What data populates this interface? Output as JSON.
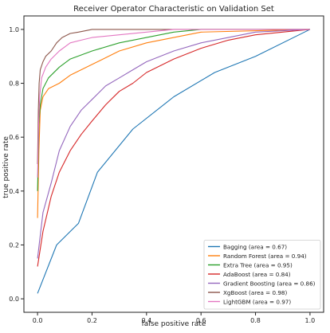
{
  "chart_data": {
    "type": "line",
    "title": "Receiver Operator Characteristic on Validation Set",
    "xlabel": "false positive rate",
    "ylabel": "true positive rate",
    "xlim": [
      -0.05,
      1.05
    ],
    "ylim": [
      -0.05,
      1.05
    ],
    "x_ticks": [
      0.0,
      0.2,
      0.4,
      0.6,
      0.8,
      1.0
    ],
    "y_ticks": [
      0.0,
      0.2,
      0.4,
      0.6,
      0.8,
      1.0
    ],
    "x_tick_labels": [
      "0.0",
      "0.2",
      "0.4",
      "0.6",
      "0.8",
      "1.0"
    ],
    "y_tick_labels": [
      "0.0",
      "0.2",
      "0.4",
      "0.6",
      "0.8",
      "1.0"
    ],
    "grid": false,
    "legend_position": "lower-right",
    "series": [
      {
        "name": "Bagging (area = 0.67)",
        "color": "#1f77b4",
        "x": [
          0.0,
          0.07,
          0.15,
          0.22,
          0.35,
          0.5,
          0.65,
          0.8,
          1.0
        ],
        "y": [
          0.02,
          0.2,
          0.28,
          0.47,
          0.63,
          0.75,
          0.84,
          0.9,
          1.0
        ]
      },
      {
        "name": "Random Forest (area = 0.94)",
        "color": "#ff7f0e",
        "x": [
          0.0,
          0.005,
          0.01,
          0.02,
          0.04,
          0.08,
          0.12,
          0.2,
          0.3,
          0.4,
          0.5,
          0.6,
          1.0
        ],
        "y": [
          0.3,
          0.55,
          0.7,
          0.75,
          0.78,
          0.8,
          0.83,
          0.87,
          0.92,
          0.95,
          0.97,
          0.99,
          1.0
        ]
      },
      {
        "name": "Extra Tree (area = 0.95)",
        "color": "#2ca02c",
        "x": [
          0.0,
          0.005,
          0.01,
          0.02,
          0.04,
          0.08,
          0.12,
          0.2,
          0.3,
          0.4,
          0.5,
          0.6,
          1.0
        ],
        "y": [
          0.4,
          0.65,
          0.72,
          0.78,
          0.82,
          0.86,
          0.89,
          0.92,
          0.95,
          0.97,
          0.99,
          1.0,
          1.0
        ]
      },
      {
        "name": "AdaBoost (area = 0.84)",
        "color": "#d62728",
        "x": [
          0.0,
          0.02,
          0.05,
          0.08,
          0.12,
          0.16,
          0.2,
          0.25,
          0.3,
          0.35,
          0.4,
          0.5,
          0.6,
          0.7,
          0.8,
          1.0
        ],
        "y": [
          0.12,
          0.25,
          0.38,
          0.47,
          0.55,
          0.61,
          0.66,
          0.72,
          0.77,
          0.8,
          0.84,
          0.89,
          0.93,
          0.96,
          0.98,
          1.0
        ]
      },
      {
        "name": "Gradient Boosting (area = 0.86)",
        "color": "#9467bd",
        "x": [
          0.0,
          0.02,
          0.05,
          0.08,
          0.12,
          0.16,
          0.2,
          0.25,
          0.3,
          0.35,
          0.4,
          0.5,
          0.6,
          0.7,
          0.8,
          1.0
        ],
        "y": [
          0.15,
          0.32,
          0.43,
          0.55,
          0.64,
          0.7,
          0.74,
          0.79,
          0.82,
          0.85,
          0.88,
          0.92,
          0.95,
          0.97,
          0.99,
          1.0
        ]
      },
      {
        "name": "XgBoost (area = 0.98)",
        "color": "#8c564b",
        "x": [
          0.0,
          0.003,
          0.006,
          0.01,
          0.02,
          0.03,
          0.05,
          0.07,
          0.09,
          0.12,
          0.15,
          0.2,
          0.3,
          1.0
        ],
        "y": [
          0.5,
          0.7,
          0.8,
          0.85,
          0.88,
          0.9,
          0.92,
          0.95,
          0.97,
          0.985,
          0.99,
          1.0,
          1.0,
          1.0
        ]
      },
      {
        "name": "LightGBM (area = 0.97)",
        "color": "#e377c2",
        "x": [
          0.0,
          0.004,
          0.008,
          0.015,
          0.03,
          0.05,
          0.08,
          0.12,
          0.16,
          0.2,
          0.3,
          0.4,
          0.5,
          1.0
        ],
        "y": [
          0.45,
          0.65,
          0.75,
          0.82,
          0.86,
          0.89,
          0.92,
          0.95,
          0.96,
          0.97,
          0.98,
          0.99,
          1.0,
          1.0
        ]
      }
    ]
  }
}
